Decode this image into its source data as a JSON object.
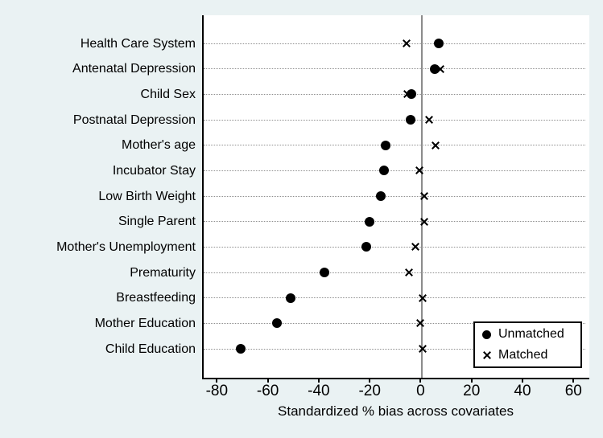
{
  "chart_data": {
    "type": "scatter",
    "subtype": "horizontal-dot-plot",
    "title": "",
    "xlabel": "Standardized % bias across covariates",
    "ylabel": "",
    "categories": [
      "Health Care System",
      "Antenatal Depression",
      "Child Sex",
      "Postnatal Depression",
      "Mother's age",
      "Incubator Stay",
      "Low Birth Weight",
      "Single Parent",
      "Mother's Unemployment",
      "Prematurity",
      "Breastfeeding",
      "Mother Education",
      "Child Education"
    ],
    "series": [
      {
        "name": "Unmatched",
        "marker": "circle",
        "values": [
          6.5,
          5.0,
          -4.3,
          -4.5,
          -14.3,
          -15.0,
          -16.4,
          -20.7,
          -22.1,
          -38.3,
          -51.6,
          -57.0,
          -71.4
        ]
      },
      {
        "name": "Matched",
        "marker": "x",
        "values": [
          -6.3,
          7.0,
          -5.8,
          2.8,
          5.2,
          -1.2,
          0.9,
          0.7,
          -2.7,
          -5.1,
          0.2,
          -0.8,
          0.2
        ]
      }
    ],
    "xticks": [
      -80,
      -60,
      -40,
      -20,
      0,
      20,
      40,
      60
    ],
    "xlim": [
      -85.8,
      65.6
    ],
    "grid": "horizontal-dotted",
    "zero_reference_line": true,
    "legend_position": "bottom-right"
  },
  "colors": {
    "background": "#eaf2f3",
    "plot_background": "#ffffff",
    "marker": "#000000",
    "axis": "#000000",
    "zero_line": "#8c8c8c",
    "gridline": "#8f8f8f"
  }
}
